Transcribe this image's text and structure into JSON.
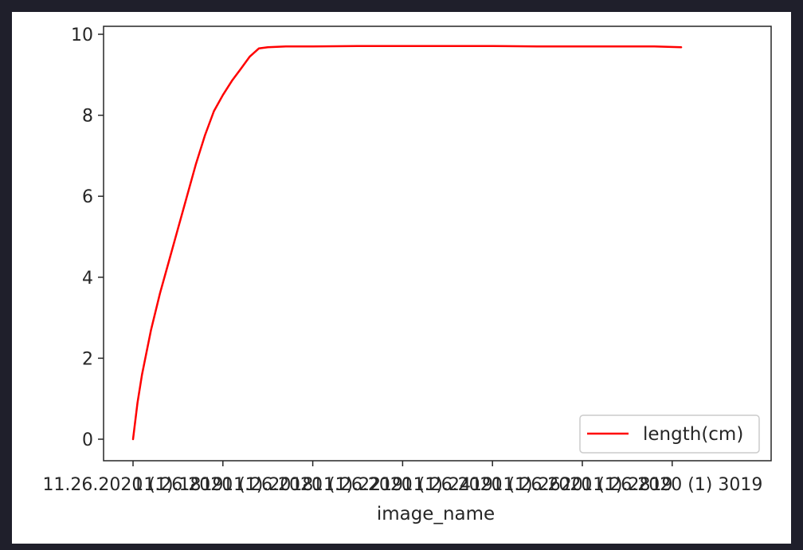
{
  "chart_data": {
    "type": "line",
    "title": "",
    "xlabel": "image_name",
    "ylabel": "",
    "ylim": [
      0,
      10
    ],
    "yticks": [
      0,
      2,
      4,
      6,
      8,
      10
    ],
    "xlim": [
      0,
      6.1
    ],
    "xtick_values": [
      0,
      1,
      2,
      3,
      4,
      5,
      6
    ],
    "xtick_labels": [
      "11.26.2020 (1).1819",
      "11.26.2020 (1).2018",
      "11.26.2020 (1).2219",
      "11.26.2020 (1).2419",
      "11.26.2020 (1).2620",
      "11.26.2020 (1).2819",
      "11.26.2020 (1) 3019"
    ],
    "legend_position": "lower-right",
    "grid": false,
    "series": [
      {
        "name": "length(cm)",
        "color": "#ff0000",
        "x": [
          0,
          0.05,
          0.1,
          0.2,
          0.3,
          0.4,
          0.5,
          0.6,
          0.7,
          0.8,
          0.9,
          1.0,
          1.1,
          1.2,
          1.3,
          1.4,
          1.5,
          1.6,
          1.7,
          1.8,
          1.85,
          1.9,
          2.0,
          2.5,
          3.0,
          3.5,
          4.0,
          4.5,
          5.0,
          5.5,
          5.8,
          6.1
        ],
        "y": [
          0,
          0.9,
          1.6,
          2.7,
          3.6,
          4.4,
          5.2,
          6.0,
          6.8,
          7.5,
          8.1,
          8.5,
          8.85,
          9.15,
          9.45,
          9.65,
          9.68,
          9.69,
          9.7,
          9.7,
          9.7,
          9.7,
          9.7,
          9.71,
          9.71,
          9.71,
          9.71,
          9.7,
          9.7,
          9.7,
          9.7,
          9.68
        ]
      }
    ]
  }
}
